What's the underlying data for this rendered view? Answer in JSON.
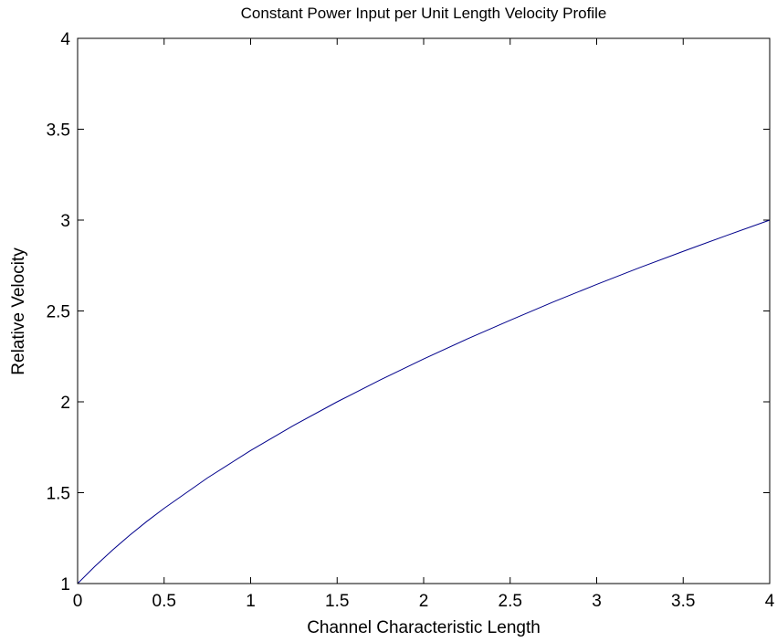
{
  "chart_data": {
    "type": "line",
    "title": "Constant Power Input per Unit Length Velocity Profile",
    "xlabel": "Channel Characteristic Length",
    "ylabel": "Relative Velocity",
    "xlim": [
      0,
      4
    ],
    "ylim": [
      1,
      4
    ],
    "xticks": [
      0,
      0.5,
      1,
      1.5,
      2,
      2.5,
      3,
      3.5,
      4
    ],
    "xtick_labels": [
      "0",
      "0.5",
      "1",
      "1.5",
      "2",
      "2.5",
      "3",
      "3.5",
      "4"
    ],
    "yticks": [
      1,
      1.5,
      2,
      2.5,
      3,
      3.5,
      4
    ],
    "ytick_labels": [
      "1",
      "1.5",
      "2",
      "2.5",
      "3",
      "3.5",
      "4"
    ],
    "grid": false,
    "legend": "none",
    "series": [
      {
        "color": "#00008b",
        "x": [
          0,
          0.1,
          0.2,
          0.3,
          0.4,
          0.5,
          0.75,
          1.0,
          1.25,
          1.5,
          1.75,
          2.0,
          2.25,
          2.5,
          2.75,
          3.0,
          3.25,
          3.5,
          3.75,
          4.0
        ],
        "y": [
          1.0,
          1.095,
          1.183,
          1.265,
          1.342,
          1.414,
          1.581,
          1.732,
          1.871,
          2.0,
          2.121,
          2.236,
          2.345,
          2.449,
          2.55,
          2.646,
          2.739,
          2.828,
          2.915,
          3.0
        ]
      }
    ]
  }
}
